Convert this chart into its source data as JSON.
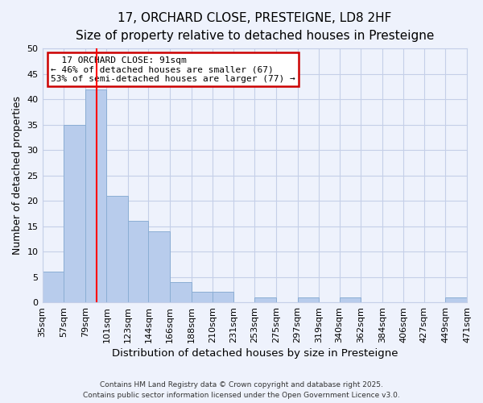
{
  "title": "17, ORCHARD CLOSE, PRESTEIGNE, LD8 2HF",
  "subtitle": "Size of property relative to detached houses in Presteigne",
  "xlabel": "Distribution of detached houses by size in Presteigne",
  "ylabel": "Number of detached properties",
  "bar_edges": [
    35,
    57,
    79,
    101,
    123,
    144,
    166,
    188,
    210,
    231,
    253,
    275,
    297,
    319,
    340,
    362,
    384,
    406,
    427,
    449,
    471
  ],
  "bar_heights": [
    6,
    35,
    42,
    21,
    16,
    14,
    4,
    2,
    2,
    0,
    1,
    0,
    1,
    0,
    1,
    0,
    0,
    0,
    0,
    1
  ],
  "bar_color": "#b8ccec",
  "bar_edgecolor": "#8baed4",
  "property_line_x": 91,
  "ylim": [
    0,
    50
  ],
  "yticks": [
    0,
    5,
    10,
    15,
    20,
    25,
    30,
    35,
    40,
    45,
    50
  ],
  "annotation_title": "17 ORCHARD CLOSE: 91sqm",
  "annotation_line1": "← 46% of detached houses are smaller (67)",
  "annotation_line2": "53% of semi-detached houses are larger (77) →",
  "footer_line1": "Contains HM Land Registry data © Crown copyright and database right 2025.",
  "footer_line2": "Contains public sector information licensed under the Open Government Licence v3.0.",
  "background_color": "#eef2fc",
  "grid_color": "#c5cfe8",
  "annotation_box_color": "#ffffff",
  "annotation_box_edgecolor": "#cc0000",
  "title_fontsize": 11,
  "subtitle_fontsize": 10,
  "tick_labels": [
    "35sqm",
    "57sqm",
    "79sqm",
    "101sqm",
    "123sqm",
    "144sqm",
    "166sqm",
    "188sqm",
    "210sqm",
    "231sqm",
    "253sqm",
    "275sqm",
    "297sqm",
    "319sqm",
    "340sqm",
    "362sqm",
    "384sqm",
    "406sqm",
    "427sqm",
    "449sqm",
    "471sqm"
  ]
}
